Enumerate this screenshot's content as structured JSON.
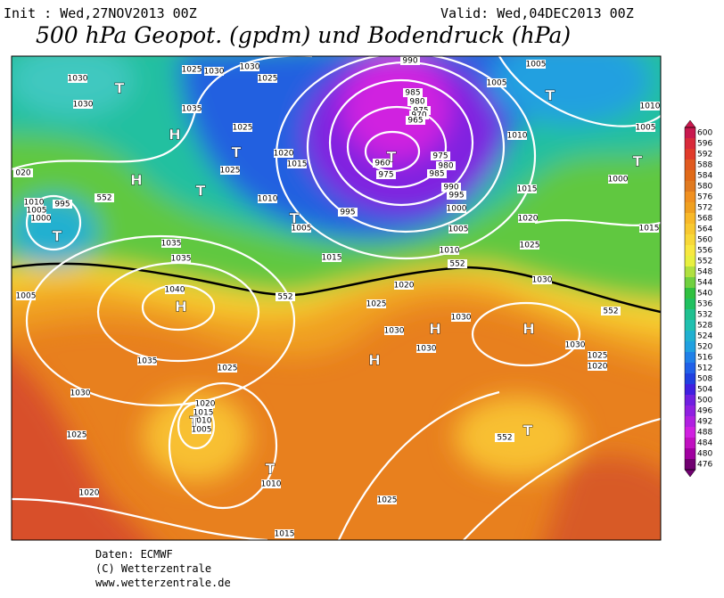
{
  "header": {
    "init": "Init : Wed,27NOV2013 00Z",
    "valid": "Valid: Wed,04DEC2013 00Z",
    "title": "500 hPa Geopot. (gpdm) und Bodendruck (hPa)"
  },
  "isobar_labels": [
    "1030",
    "1030",
    "1025",
    "1030",
    "1030",
    "1025",
    "1035",
    "1025",
    "1025",
    "1020",
    "1015",
    "1010",
    "1005",
    "995",
    "990",
    "985",
    "980",
    "975",
    "970",
    "965",
    "960",
    "975",
    "975",
    "980",
    "985",
    "990",
    "995",
    "1000",
    "1005",
    "1010",
    "1015",
    "1015",
    "1020",
    "1025",
    "1030",
    "1010",
    "1005",
    "1005",
    "1010",
    "1005",
    "1000",
    "1015",
    "020",
    "1010",
    "1005",
    "1000",
    "995",
    "1035",
    "1035",
    "1005",
    "1040",
    "1035",
    "1025",
    "1020",
    "1015",
    "1010",
    "1005",
    "1030",
    "1025",
    "1020",
    "1010",
    "1015",
    "1025",
    "1025",
    "1020",
    "1030",
    "1030",
    "1030",
    "1030",
    "1025",
    "1020",
    "552",
    "552",
    "552",
    "552",
    "552"
  ],
  "pressure_centers": [
    "T",
    "H",
    "H",
    "T",
    "T",
    "T",
    "T",
    "T",
    "T",
    "T",
    "H",
    "H",
    "H",
    "H",
    "T",
    "T",
    "T"
  ],
  "colorbar": {
    "levels": [
      600,
      596,
      592,
      588,
      584,
      580,
      576,
      572,
      568,
      564,
      560,
      556,
      552,
      548,
      544,
      540,
      536,
      532,
      528,
      524,
      520,
      516,
      512,
      508,
      504,
      500,
      496,
      492,
      488,
      484,
      480,
      476
    ],
    "colors": [
      "#c8184e",
      "#d82a3a",
      "#e03a2a",
      "#e05a20",
      "#e06a18",
      "#e07a20",
      "#f09020",
      "#f0a020",
      "#f8b828",
      "#f8c830",
      "#f8d838",
      "#f8e840",
      "#e8f040",
      "#b0e040",
      "#70d040",
      "#30c040",
      "#20c060",
      "#20c090",
      "#20c0b0",
      "#20b0d0",
      "#20a0e0",
      "#2080e8",
      "#2060e8",
      "#2040e0",
      "#4020e0",
      "#7020e0",
      "#9020e0",
      "#b020e0",
      "#d020e0",
      "#c010c0",
      "#a000a0",
      "#700070"
    ]
  },
  "footer": [
    "Daten: ECMWF",
    "(C) Wetterzentrale",
    "www.wetterzentrale.de"
  ]
}
